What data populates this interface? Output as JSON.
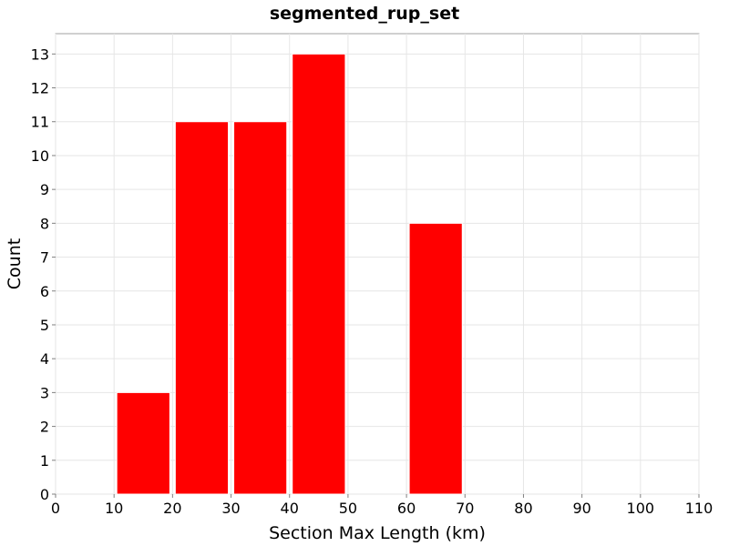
{
  "chart_data": {
    "type": "bar",
    "title": "segmented_rup_set",
    "xlabel": "Section Max Length (km)",
    "ylabel": "Count",
    "xlim": [
      0,
      110
    ],
    "ylim": [
      0,
      13.6
    ],
    "xticks": [
      0,
      10,
      20,
      30,
      40,
      50,
      60,
      70,
      80,
      90,
      100,
      110
    ],
    "yticks": [
      0,
      1,
      2,
      3,
      4,
      5,
      6,
      7,
      8,
      9,
      10,
      11,
      12,
      13
    ],
    "bin_width": 10,
    "bars": [
      {
        "bin_start": 10,
        "bin_end": 20,
        "value": 3
      },
      {
        "bin_start": 20,
        "bin_end": 30,
        "value": 11
      },
      {
        "bin_start": 30,
        "bin_end": 40,
        "value": 11
      },
      {
        "bin_start": 40,
        "bin_end": 50,
        "value": 13
      },
      {
        "bin_start": 60,
        "bin_end": 70,
        "value": 8
      }
    ],
    "bar_color": "#ff0000",
    "grid": true,
    "legend": "none"
  }
}
